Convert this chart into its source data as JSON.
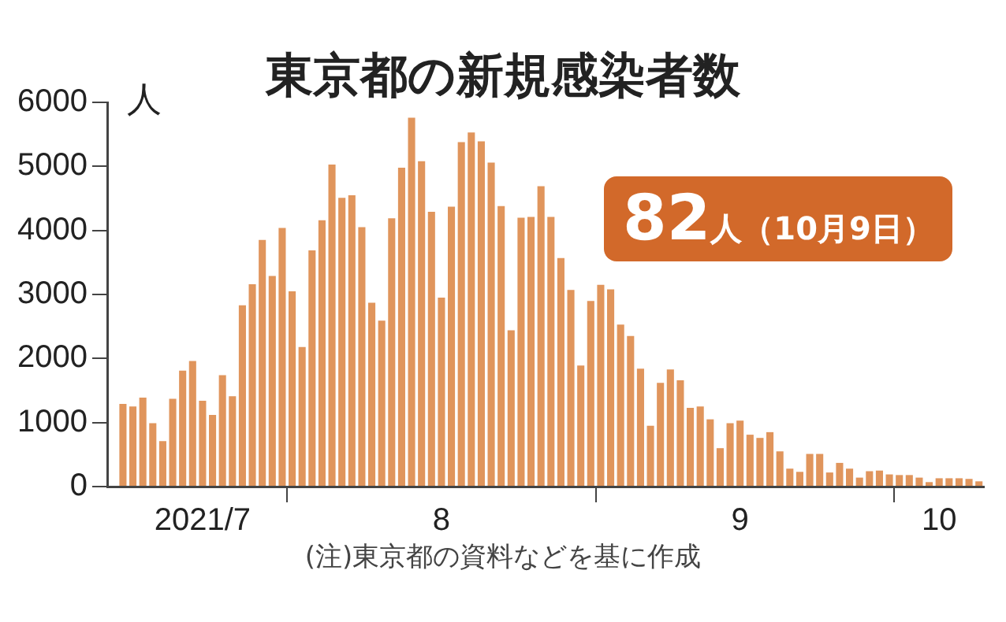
{
  "chart_data": {
    "type": "bar",
    "title": "東京都の新規感染者数",
    "ylabel": "人",
    "x": [
      "2021-07-15",
      "2021-07-16",
      "2021-07-17",
      "2021-07-18",
      "2021-07-19",
      "2021-07-20",
      "2021-07-21",
      "2021-07-22",
      "2021-07-23",
      "2021-07-24",
      "2021-07-25",
      "2021-07-26",
      "2021-07-27",
      "2021-07-28",
      "2021-07-29",
      "2021-07-30",
      "2021-07-31",
      "2021-08-01",
      "2021-08-02",
      "2021-08-03",
      "2021-08-04",
      "2021-08-05",
      "2021-08-06",
      "2021-08-07",
      "2021-08-08",
      "2021-08-09",
      "2021-08-10",
      "2021-08-11",
      "2021-08-12",
      "2021-08-13",
      "2021-08-14",
      "2021-08-15",
      "2021-08-16",
      "2021-08-17",
      "2021-08-18",
      "2021-08-19",
      "2021-08-20",
      "2021-08-21",
      "2021-08-22",
      "2021-08-23",
      "2021-08-24",
      "2021-08-25",
      "2021-08-26",
      "2021-08-27",
      "2021-08-28",
      "2021-08-29",
      "2021-08-30",
      "2021-08-31",
      "2021-09-01",
      "2021-09-02",
      "2021-09-03",
      "2021-09-04",
      "2021-09-05",
      "2021-09-06",
      "2021-09-07",
      "2021-09-08",
      "2021-09-09",
      "2021-09-10",
      "2021-09-11",
      "2021-09-12",
      "2021-09-13",
      "2021-09-14",
      "2021-09-15",
      "2021-09-16",
      "2021-09-17",
      "2021-09-18",
      "2021-09-19",
      "2021-09-20",
      "2021-09-21",
      "2021-09-22",
      "2021-09-23",
      "2021-09-24",
      "2021-09-25",
      "2021-09-26",
      "2021-09-27",
      "2021-09-28",
      "2021-09-29",
      "2021-09-30",
      "2021-10-01",
      "2021-10-02",
      "2021-10-03",
      "2021-10-04",
      "2021-10-05",
      "2021-10-06",
      "2021-10-07",
      "2021-10-08",
      "2021-10-09"
    ],
    "values": [
      1290,
      1250,
      1390,
      990,
      710,
      1370,
      1810,
      1960,
      1340,
      1120,
      1740,
      1410,
      2830,
      3160,
      3850,
      3290,
      4040,
      3050,
      2180,
      3690,
      4160,
      5030,
      4510,
      4550,
      4050,
      2870,
      2590,
      4190,
      4980,
      5760,
      5080,
      4290,
      2950,
      4370,
      5380,
      5530,
      5390,
      5060,
      4380,
      2440,
      4200,
      4210,
      4690,
      4210,
      3570,
      3070,
      1890,
      2900,
      3150,
      3080,
      2530,
      2350,
      1840,
      950,
      1620,
      1830,
      1660,
      1230,
      1250,
      1050,
      600,
      990,
      1030,
      810,
      760,
      850,
      550,
      280,
      230,
      510,
      510,
      220,
      370,
      280,
      140,
      240,
      250,
      190,
      180,
      180,
      140,
      70,
      130,
      130,
      130,
      120,
      82
    ],
    "color": "#e0955c",
    "xlim": [
      "2021-07-13T12:00",
      "2021-10-09T12:00"
    ],
    "xticks": [
      {
        "value": "2021-07-23",
        "label": "2021/7"
      },
      {
        "value": "2021-07-31T12:00",
        "label": null
      },
      {
        "value": "2021-08-16",
        "label": "8"
      },
      {
        "value": "2021-08-31T12:00",
        "label": null
      },
      {
        "value": "2021-09-15",
        "label": "9"
      },
      {
        "value": "2021-09-30T12:00",
        "label": null
      },
      {
        "value": "2021-10-05",
        "label": "10"
      }
    ],
    "ylim": [
      0,
      6000
    ],
    "yticks": [
      0,
      1000,
      2000,
      3000,
      4000,
      5000,
      6000
    ],
    "grid": false,
    "annotations": [
      "82人（10月9日）",
      "(注)東京都の資料などを基に作成"
    ]
  }
}
